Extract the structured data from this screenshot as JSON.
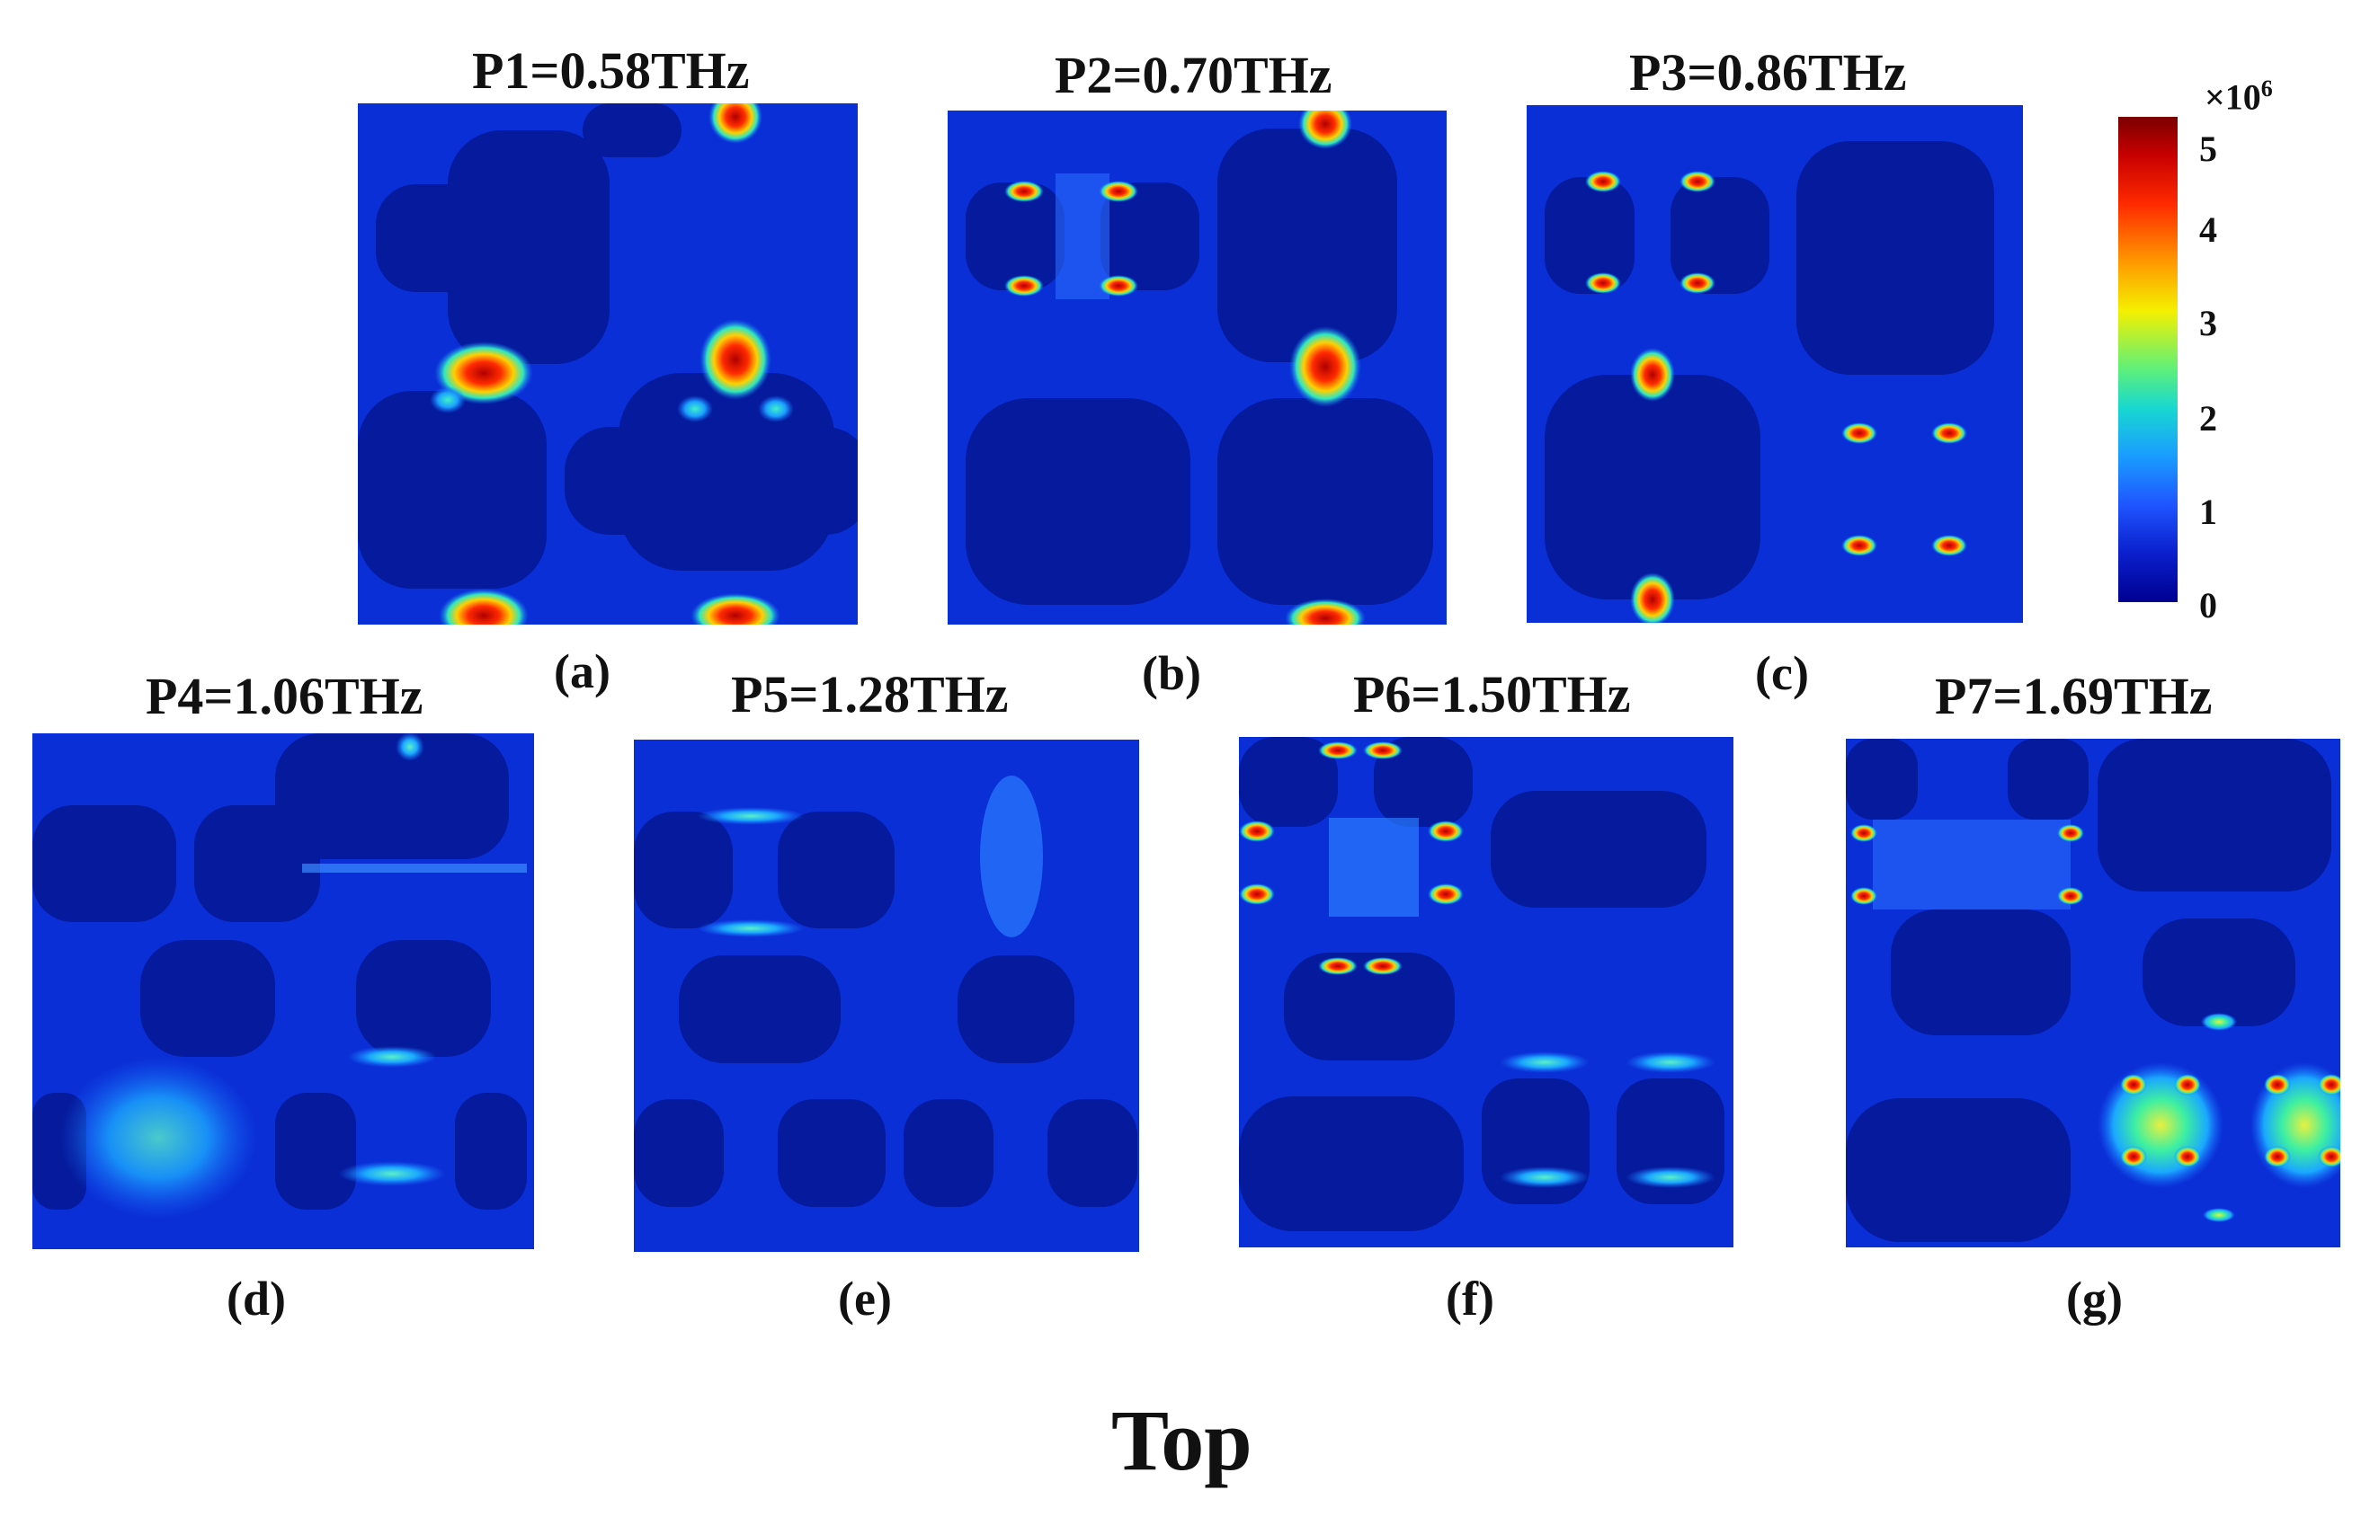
{
  "panels": [
    {
      "id": "a",
      "title": "P1=0.58THz",
      "label": "(a)"
    },
    {
      "id": "b",
      "title": "P2=0.70THz",
      "label": "(b)"
    },
    {
      "id": "c",
      "title": "P3=0.86THz",
      "label": "(c)"
    },
    {
      "id": "d",
      "title": "P4=1.06THz",
      "label": "(d)"
    },
    {
      "id": "e",
      "title": "P5=1.28THz",
      "label": "(e)"
    },
    {
      "id": "f",
      "title": "P6=1.50THz",
      "label": "(f)"
    },
    {
      "id": "g",
      "title": "P7=1.69THz",
      "label": "(g)"
    }
  ],
  "colorbar": {
    "exponent_base": "×10",
    "exponent_power": "6",
    "ticks": [
      "5",
      "4",
      "3",
      "2",
      "1",
      "0"
    ]
  },
  "caption": "Top",
  "colors": {
    "field_background": "#0a2fd6",
    "dark_region": "#051a9c",
    "hotspot": "#d40000"
  }
}
